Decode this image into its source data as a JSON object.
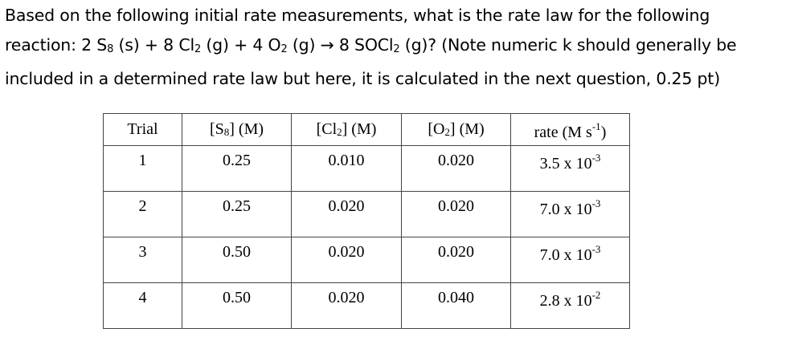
{
  "question": {
    "line1": "Based on the following initial rate measurements, what is the rate law for the following",
    "line2_prefix": "reaction: 2 S",
    "line2_s_sub": "8",
    "line2_mid1": " (s) + 8 Cl",
    "line2_cl_sub": "2",
    "line2_mid2": " (g) + 4 O",
    "line2_o_sub": "2",
    "line2_mid3": " (g) → 8 SOCl",
    "line2_socl_sub": "2",
    "line2_suffix": " (g)? (Note numeric k should generally be",
    "line3": "included in a determined rate law but here, it is calculated in the next question, 0.25 pt)"
  },
  "table": {
    "headers": {
      "trial": "Trial",
      "s8_pre": "[S",
      "s8_sub": "8",
      "s8_post": "] (M)",
      "cl2_pre": "[Cl",
      "cl2_sub": "2",
      "cl2_post": "] (M)",
      "o2_pre": "[O",
      "o2_sub": "2",
      "o2_post": "] (M)",
      "rate_pre": "rate (M s",
      "rate_sup": "-1",
      "rate_post": ")"
    },
    "rows": [
      {
        "trial": "1",
        "s8": "0.25",
        "cl2": "0.010",
        "o2": "0.020",
        "rate_base": "3.5 x 10",
        "rate_exp": "-3"
      },
      {
        "trial": "2",
        "s8": "0.25",
        "cl2": "0.020",
        "o2": "0.020",
        "rate_base": "7.0 x 10",
        "rate_exp": "-3"
      },
      {
        "trial": "3",
        "s8": "0.50",
        "cl2": "0.020",
        "o2": "0.020",
        "rate_base": "7.0 x 10",
        "rate_exp": "-3"
      },
      {
        "trial": "4",
        "s8": "0.50",
        "cl2": "0.020",
        "o2": "0.040",
        "rate_base": "2.8 x 10",
        "rate_exp": "-2"
      }
    ]
  }
}
